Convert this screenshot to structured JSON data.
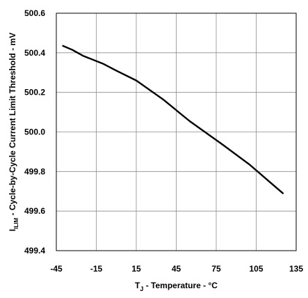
{
  "chart_data": {
    "type": "line",
    "title": "",
    "xlabel": {
      "main": "T",
      "sub": "J",
      "rest": " - Temperature - °C"
    },
    "ylabel": {
      "main": "I",
      "sub": "ILIM",
      "rest": " - Cycle-by-Cycle Current Limit Threshold - mV"
    },
    "xlim": [
      -45,
      135
    ],
    "ylim": [
      499.4,
      500.6
    ],
    "xticks": [
      -45,
      -15,
      15,
      45,
      75,
      105,
      135
    ],
    "xtick_labels": [
      "-45",
      "-15",
      "15",
      "45",
      "75",
      "105",
      "135"
    ],
    "yticks": [
      499.4,
      499.6,
      499.8,
      500.0,
      500.2,
      500.4,
      500.6
    ],
    "ytick_labels": [
      "499.4",
      "499.6",
      "499.8",
      "500.0",
      "500.2",
      "500.4",
      "500.6"
    ],
    "grid": true,
    "series": [
      {
        "name": "",
        "color": "#000000",
        "x": [
          -40,
          -33,
          -25,
          -10,
          0,
          15,
          35,
          55,
          80,
          100,
          125
        ],
        "y": [
          500.435,
          500.415,
          500.385,
          500.345,
          500.31,
          500.26,
          500.165,
          500.055,
          499.935,
          499.835,
          499.69
        ]
      }
    ]
  }
}
